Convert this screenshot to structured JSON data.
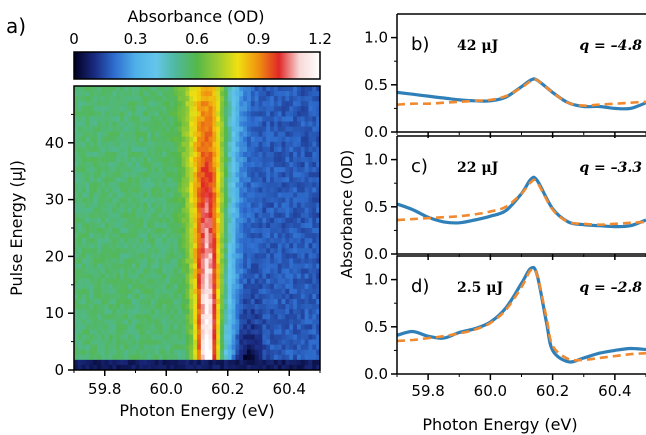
{
  "figure": {
    "panel_a_label": "a)",
    "colorbar": {
      "title": "Absorbance (OD)",
      "ticks": [
        "0",
        "0.3",
        "0.6",
        "0.9",
        "1.2"
      ],
      "range": [
        0,
        1.2
      ],
      "colors": [
        "#000020",
        "#1a2a80",
        "#2f6fd0",
        "#4fb0e8",
        "#64c6ea",
        "#4fb89a",
        "#55b84a",
        "#9ccc30",
        "#f0e010",
        "#f09010",
        "#e02828",
        "#f8d8d8",
        "#ffffff"
      ]
    }
  },
  "chart_data": [
    {
      "type": "heatmap",
      "xlabel": "Photon Energy (eV)",
      "ylabel": "Pulse Energy (μJ)",
      "xlim": [
        59.7,
        60.5
      ],
      "ylim": [
        0,
        50
      ],
      "x_ticks": [
        "59.8",
        "60.0",
        "60.2",
        "60.4"
      ],
      "y_ticks": [
        "0",
        "10",
        "20",
        "30",
        "40"
      ],
      "x_tick_values": [
        59.8,
        60.0,
        60.2,
        60.4
      ],
      "y_tick_values": [
        0,
        10,
        20,
        30,
        40
      ]
    },
    {
      "type": "line",
      "panel_label": "b)",
      "pulse_label": "42 μJ",
      "q_label": "q = –4.8",
      "ylabel": "",
      "xlim": [
        59.7,
        60.5
      ],
      "ylim": [
        0,
        1.25
      ],
      "y_ticks": [
        "0.0",
        "0.5",
        "1.0"
      ],
      "series": [
        {
          "x": [
            59.7,
            59.75,
            59.8,
            59.85,
            59.9,
            59.95,
            60.0,
            60.05,
            60.1,
            60.13,
            60.15,
            60.2,
            60.25,
            60.3,
            60.35,
            60.4,
            60.45,
            60.5
          ],
          "y": [
            0.42,
            0.4,
            0.38,
            0.36,
            0.34,
            0.33,
            0.33,
            0.37,
            0.48,
            0.55,
            0.55,
            0.42,
            0.31,
            0.27,
            0.27,
            0.25,
            0.25,
            0.31
          ]
        },
        {
          "x": [
            59.7,
            59.75,
            59.8,
            59.85,
            59.9,
            59.95,
            60.0,
            60.05,
            60.1,
            60.13,
            60.15,
            60.2,
            60.25,
            60.3,
            60.35,
            60.4,
            60.45,
            60.5
          ],
          "y": [
            0.29,
            0.3,
            0.3,
            0.31,
            0.32,
            0.33,
            0.34,
            0.38,
            0.47,
            0.54,
            0.55,
            0.42,
            0.31,
            0.28,
            0.29,
            0.3,
            0.31,
            0.32
          ]
        }
      ]
    },
    {
      "type": "line",
      "panel_label": "c)",
      "pulse_label": "22 μJ",
      "q_label": "q = –3.3",
      "ylabel": "Absorbance (OD)",
      "xlim": [
        59.7,
        60.5
      ],
      "ylim": [
        0,
        1.25
      ],
      "y_ticks": [
        "0.0",
        "0.5",
        "1.0"
      ],
      "series": [
        {
          "x": [
            59.7,
            59.75,
            59.8,
            59.85,
            59.9,
            59.95,
            60.0,
            60.05,
            60.1,
            60.13,
            60.15,
            60.2,
            60.25,
            60.3,
            60.35,
            60.4,
            60.45,
            60.5
          ],
          "y": [
            0.53,
            0.47,
            0.39,
            0.34,
            0.33,
            0.36,
            0.4,
            0.46,
            0.64,
            0.79,
            0.78,
            0.48,
            0.34,
            0.31,
            0.3,
            0.29,
            0.3,
            0.36
          ]
        },
        {
          "x": [
            59.7,
            59.75,
            59.8,
            59.85,
            59.9,
            59.95,
            60.0,
            60.05,
            60.1,
            60.13,
            60.15,
            60.2,
            60.25,
            60.3,
            60.35,
            60.4,
            60.45,
            60.5
          ],
          "y": [
            0.36,
            0.37,
            0.38,
            0.39,
            0.4,
            0.42,
            0.45,
            0.5,
            0.64,
            0.76,
            0.76,
            0.47,
            0.34,
            0.32,
            0.31,
            0.32,
            0.33,
            0.34
          ]
        }
      ]
    },
    {
      "type": "line",
      "panel_label": "d)",
      "pulse_label": "2.5 μJ",
      "q_label": "q = –2.8",
      "ylabel": "",
      "xlabel": "Photon Energy (eV)",
      "xlim": [
        59.7,
        60.5
      ],
      "ylim": [
        0,
        1.25
      ],
      "x_ticks": [
        "59.8",
        "60.0",
        "60.2",
        "60.4"
      ],
      "y_ticks": [
        "0.0",
        "0.5",
        "1.0"
      ],
      "series": [
        {
          "x": [
            59.7,
            59.75,
            59.8,
            59.85,
            59.9,
            59.95,
            60.0,
            60.05,
            60.1,
            60.13,
            60.15,
            60.18,
            60.2,
            60.25,
            60.3,
            60.35,
            60.4,
            60.45,
            60.5
          ],
          "y": [
            0.41,
            0.45,
            0.4,
            0.38,
            0.44,
            0.48,
            0.55,
            0.7,
            0.96,
            1.12,
            1.05,
            0.55,
            0.25,
            0.13,
            0.17,
            0.22,
            0.25,
            0.27,
            0.26
          ]
        },
        {
          "x": [
            59.7,
            59.75,
            59.8,
            59.85,
            59.9,
            59.95,
            60.0,
            60.05,
            60.1,
            60.13,
            60.15,
            60.18,
            60.2,
            60.25,
            60.3,
            60.35,
            60.4,
            60.45,
            60.5
          ],
          "y": [
            0.35,
            0.36,
            0.38,
            0.4,
            0.43,
            0.47,
            0.54,
            0.68,
            0.92,
            1.1,
            1.05,
            0.6,
            0.3,
            0.16,
            0.15,
            0.17,
            0.19,
            0.21,
            0.22
          ]
        }
      ]
    }
  ]
}
